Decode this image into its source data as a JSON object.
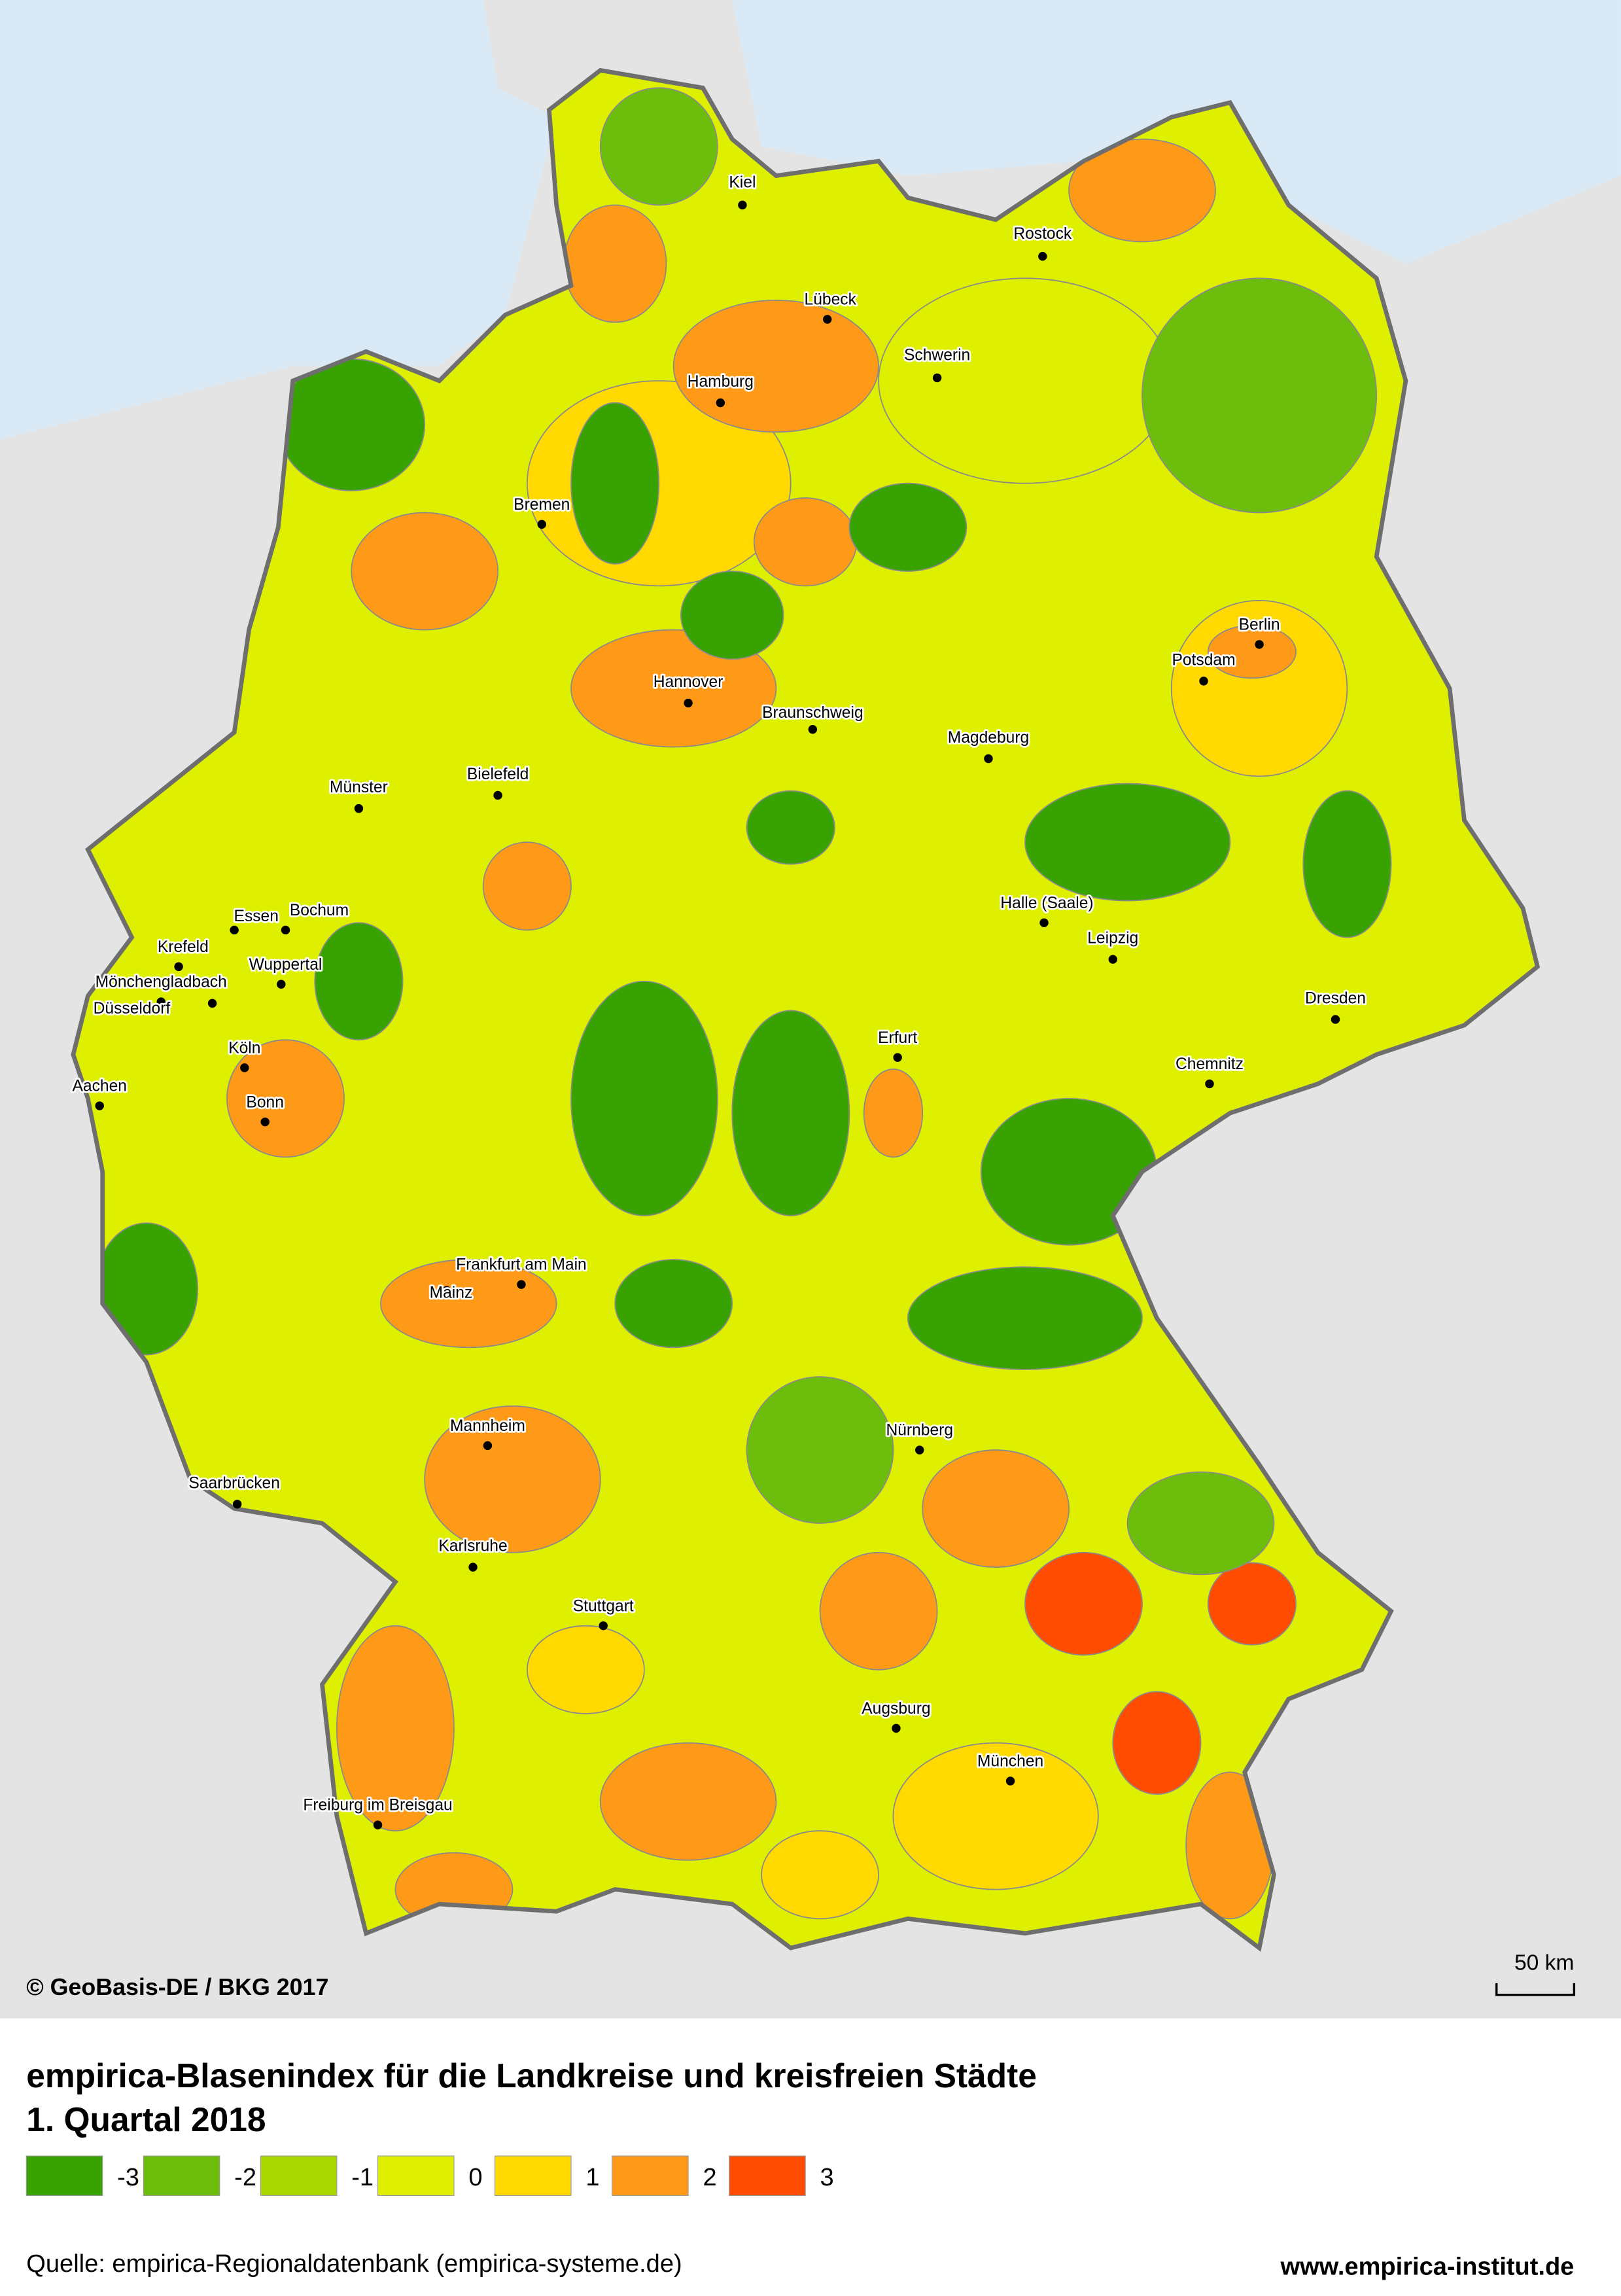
{
  "map": {
    "copyright": "© GeoBasis-DE / BKG 2017",
    "scale_label": "50 km",
    "cities": [
      "Kiel",
      "Rostock",
      "Lübeck",
      "Schwerin",
      "Hamburg",
      "Bremen",
      "Berlin",
      "Potsdam",
      "Hannover",
      "Braunschweig",
      "Magdeburg",
      "Münster",
      "Bielefeld",
      "Essen",
      "Bochum",
      "Krefeld",
      "Wuppertal",
      "Mönchengladbach",
      "Düsseldorf",
      "Halle (Saale)",
      "Leipzig",
      "Dresden",
      "Köln",
      "Erfurt",
      "Chemnitz",
      "Aachen",
      "Bonn",
      "Frankfurt am Main",
      "Mainz",
      "Mannheim",
      "Nürnberg",
      "Saarbrücken",
      "Karlsruhe",
      "Stuttgart",
      "Augsburg",
      "München",
      "Freiburg im Breisgau"
    ]
  },
  "title": "empirica-Blasenindex für die Landkreise und kreisfreien Städte",
  "subtitle": "1. Quartal 2018",
  "legend": {
    "items": [
      {
        "value": -3,
        "color": "#38a300"
      },
      {
        "value": -2,
        "color": "#6cbd0c"
      },
      {
        "value": -1,
        "color": "#a8d800"
      },
      {
        "value": 0,
        "color": "#def000"
      },
      {
        "value": 1,
        "color": "#ffd900"
      },
      {
        "value": 2,
        "color": "#ff9a18"
      },
      {
        "value": 3,
        "color": "#ff4c00"
      }
    ]
  },
  "source": "Quelle: empirica-Regionaldatenbank (empirica-systeme.de)",
  "website": "www.empirica-institut.de"
}
